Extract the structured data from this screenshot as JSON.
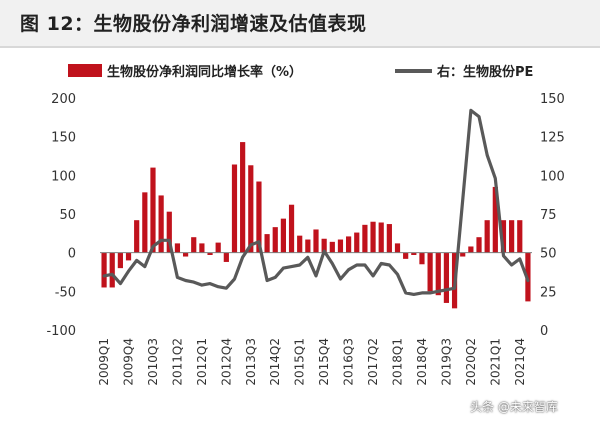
{
  "title": "图 12：生物股份净利润增速及估值表现",
  "watermark": "头条 @未来智库",
  "colors": {
    "bar": "#c0121c",
    "line": "#595959",
    "title_bg": "#f1f1f1"
  },
  "chart_data": {
    "type": "bar+line",
    "legend": {
      "position": "top",
      "bar_label": "生物股份净利润同比增长率（%）",
      "line_label": "右：生物股份PE"
    },
    "left_axis": {
      "min": -100,
      "max": 200,
      "ticks": [
        -100,
        -50,
        0,
        50,
        100,
        150,
        200
      ]
    },
    "right_axis": {
      "min": 0,
      "max": 150,
      "ticks": [
        0,
        25,
        50,
        75,
        100,
        125,
        150
      ]
    },
    "x_ticks": [
      "2009Q1",
      "2009Q4",
      "2010Q3",
      "2011Q2",
      "2012Q1",
      "2012Q4",
      "2013Q3",
      "2014Q2",
      "2015Q1",
      "2015Q4",
      "2016Q3",
      "2017Q2",
      "2018Q1",
      "2018Q4",
      "2019Q3",
      "2020Q2",
      "2021Q1",
      "2021Q4"
    ],
    "quarters": [
      "2009Q1",
      "2009Q2",
      "2009Q3",
      "2009Q4",
      "2010Q1",
      "2010Q2",
      "2010Q3",
      "2010Q4",
      "2011Q1",
      "2011Q2",
      "2011Q3",
      "2011Q4",
      "2012Q1",
      "2012Q2",
      "2012Q3",
      "2012Q4",
      "2013Q1",
      "2013Q2",
      "2013Q3",
      "2013Q4",
      "2014Q1",
      "2014Q2",
      "2014Q3",
      "2014Q4",
      "2015Q1",
      "2015Q2",
      "2015Q3",
      "2015Q4",
      "2016Q1",
      "2016Q2",
      "2016Q3",
      "2016Q4",
      "2017Q1",
      "2017Q2",
      "2017Q3",
      "2017Q4",
      "2018Q1",
      "2018Q2",
      "2018Q3",
      "2018Q4",
      "2019Q1",
      "2019Q2",
      "2019Q3",
      "2019Q4",
      "2020Q1",
      "2020Q2",
      "2020Q3",
      "2020Q4",
      "2021Q1",
      "2021Q2",
      "2021Q3",
      "2021Q4",
      "2022Q1"
    ],
    "series": [
      {
        "name": "生物股份净利润同比增长率（%）",
        "axis": "left",
        "kind": "bar",
        "values": [
          -45,
          -45,
          -20,
          -10,
          42,
          78,
          110,
          74,
          53,
          12,
          -5,
          20,
          12,
          -3,
          13,
          -12,
          114,
          143,
          113,
          92,
          24,
          33,
          44,
          62,
          22,
          17,
          30,
          18,
          14,
          17,
          21,
          26,
          36,
          40,
          39,
          37,
          12,
          -8,
          -3,
          -15,
          -50,
          -55,
          -65,
          -72,
          -5,
          8,
          20,
          42,
          85,
          42,
          42,
          42,
          -63
        ]
      },
      {
        "name": "右：生物股份PE",
        "axis": "right",
        "kind": "line",
        "values": [
          35,
          36,
          30,
          38,
          45,
          41,
          54,
          58,
          58,
          34,
          32,
          31,
          29,
          30,
          28,
          27,
          33,
          47,
          55,
          57,
          32,
          34,
          40,
          41,
          42,
          47,
          35,
          51,
          43,
          33,
          39,
          42,
          42,
          35,
          43,
          42,
          36,
          24,
          23,
          24,
          24,
          25,
          26,
          27,
          84,
          142,
          138,
          113,
          98,
          48,
          42,
          46,
          32
        ]
      }
    ]
  }
}
